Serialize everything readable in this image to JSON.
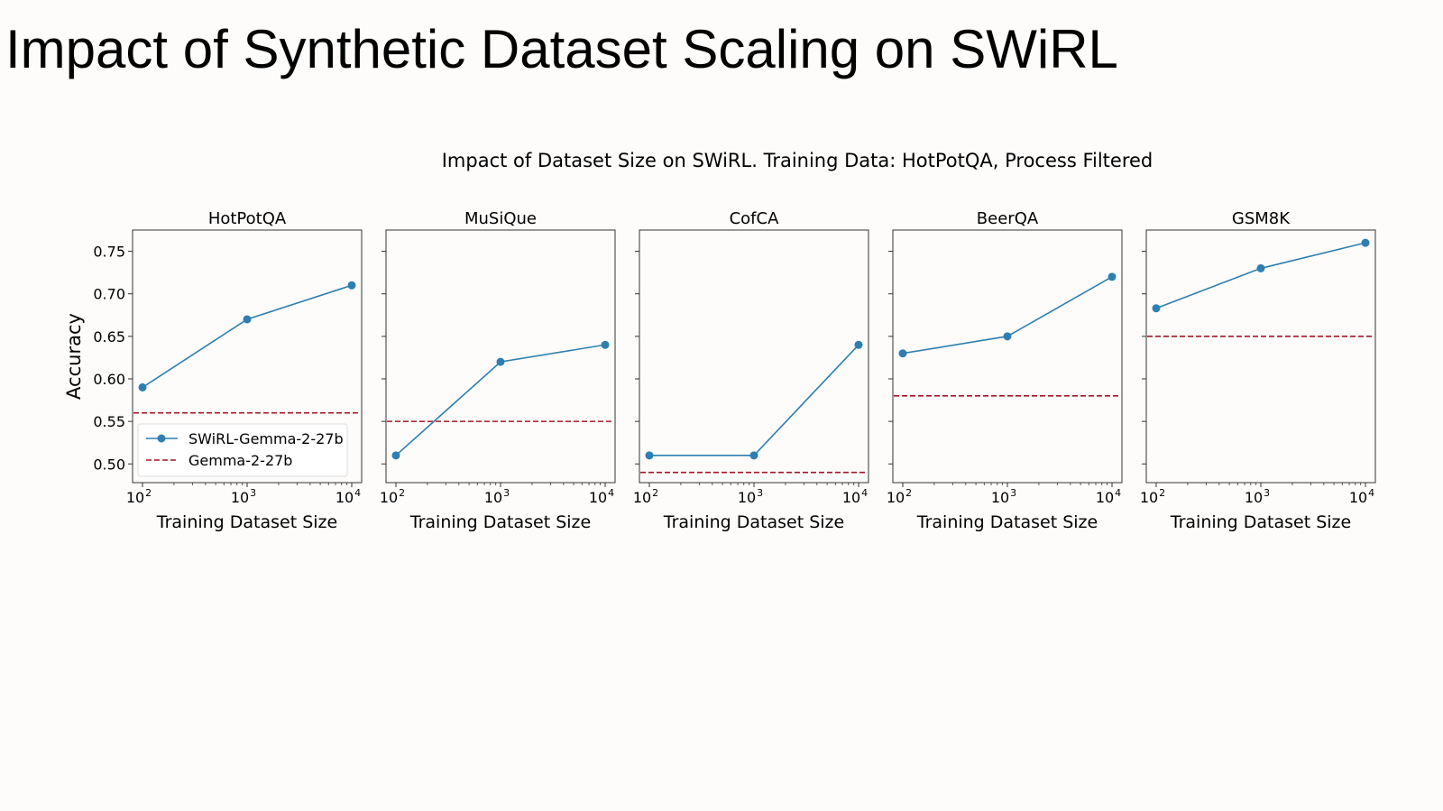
{
  "slide": {
    "title": "Impact of Synthetic Dataset Scaling on SWiRL"
  },
  "chart_data": {
    "type": "line",
    "suptitle": "Impact of Dataset Size on SWiRL. Training Data: HotPotQA, Process Filtered",
    "xlabel": "Training Dataset Size",
    "ylabel": "Accuracy",
    "xscale": "log",
    "x": [
      100,
      1000,
      10000
    ],
    "x_tick_labels": [
      {
        "base": "10",
        "exp": "2"
      },
      {
        "base": "10",
        "exp": "3"
      },
      {
        "base": "10",
        "exp": "4"
      }
    ],
    "ylim": [
      0.478,
      0.775
    ],
    "y_ticks": [
      0.5,
      0.55,
      0.6,
      0.65,
      0.7,
      0.75
    ],
    "y_tick_labels": [
      "0.50",
      "0.55",
      "0.60",
      "0.65",
      "0.70",
      "0.75"
    ],
    "grid": false,
    "legend": {
      "placement": "lower-left",
      "panel": 0,
      "entries": [
        "SWiRL-Gemma-2-27b",
        "Gemma-2-27b"
      ]
    },
    "series_styles": {
      "model": {
        "color": "#2e7fb0",
        "style": "solid-with-markers"
      },
      "baseline": {
        "color": "#a3172a",
        "style": "dashed"
      }
    },
    "panels": [
      {
        "title": "HotPotQA",
        "series": [
          {
            "name": "SWiRL-Gemma-2-27b",
            "values": [
              0.59,
              0.67,
              0.71
            ]
          },
          {
            "name": "Gemma-2-27b",
            "baseline": 0.56
          }
        ]
      },
      {
        "title": "MuSiQue",
        "series": [
          {
            "name": "SWiRL-Gemma-2-27b",
            "values": [
              0.51,
              0.62,
              0.64
            ]
          },
          {
            "name": "Gemma-2-27b",
            "baseline": 0.55
          }
        ]
      },
      {
        "title": "CofCA",
        "series": [
          {
            "name": "SWiRL-Gemma-2-27b",
            "values": [
              0.51,
              0.51,
              0.64
            ]
          },
          {
            "name": "Gemma-2-27b",
            "baseline": 0.49
          }
        ]
      },
      {
        "title": "BeerQA",
        "series": [
          {
            "name": "SWiRL-Gemma-2-27b",
            "values": [
              0.63,
              0.65,
              0.72
            ]
          },
          {
            "name": "Gemma-2-27b",
            "baseline": 0.58
          }
        ]
      },
      {
        "title": "GSM8K",
        "series": [
          {
            "name": "SWiRL-Gemma-2-27b",
            "values": [
              0.683,
              0.73,
              0.76
            ]
          },
          {
            "name": "Gemma-2-27b",
            "baseline": 0.65
          }
        ]
      }
    ]
  }
}
